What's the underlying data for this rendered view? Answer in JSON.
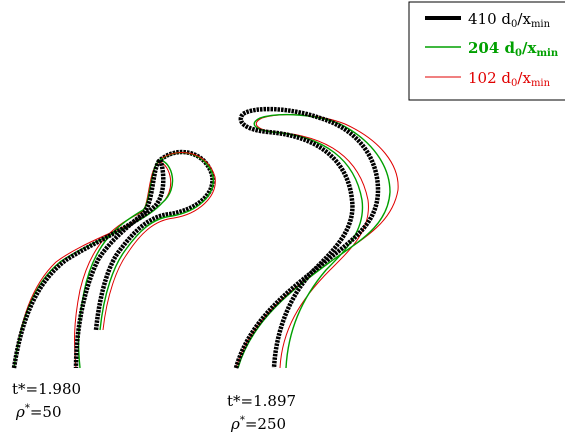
{
  "chart_data": {
    "type": "line",
    "legend": {
      "position": "top-right",
      "entries": [
        {
          "resolution": "410",
          "unit": "d",
          "sub0": "0",
          "denom": "x",
          "sub1": "min",
          "color": "#000000"
        },
        {
          "resolution": "204",
          "unit": "d",
          "sub0": "0",
          "denom": "x",
          "sub1": "min",
          "color": "#00a000"
        },
        {
          "resolution": "102",
          "unit": "d",
          "sub0": "0",
          "denom": "x",
          "sub1": "min",
          "color": "#e00000"
        }
      ]
    },
    "series": [
      {
        "name": "410 d0/xmin",
        "color": "#000000"
      },
      {
        "name": "204 d0/xmin",
        "color": "#00a000"
      },
      {
        "name": "102 d0/xmin",
        "color": "#e00000"
      }
    ],
    "annotations": [
      {
        "time_label": "t*=1.980",
        "density_label": "=50",
        "rho": "ρ",
        "star": "*"
      },
      {
        "time_label": "t*=1.897",
        "density_label": "=250",
        "rho": "ρ",
        "star": "*"
      }
    ]
  }
}
